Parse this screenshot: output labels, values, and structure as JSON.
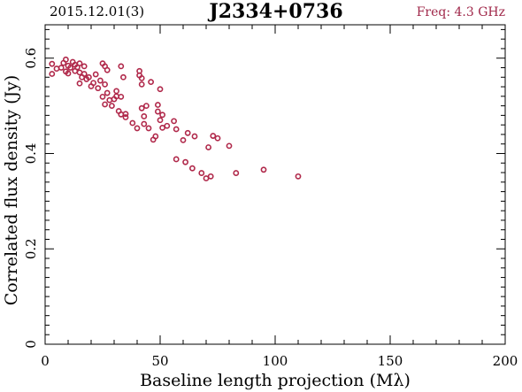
{
  "header": {
    "date_label": "2015.12.01(3)",
    "source_name": "J2334+0736",
    "freq_label": "Freq: 4.3 GHz"
  },
  "colors": {
    "marker": "#b0284a",
    "freq_text": "#a0284a",
    "axis": "#000000"
  },
  "chart_data": {
    "type": "scatter",
    "title": "J2334+0736",
    "xlabel": "Baseline length projection (Mλ)",
    "ylabel": "Correlated flux density (Jy)",
    "xlim": [
      0,
      200
    ],
    "ylim": [
      0,
      0.67
    ],
    "x_ticks": [
      0,
      50,
      100,
      150,
      200
    ],
    "y_ticks": [
      0,
      0.2,
      0.4,
      0.6
    ],
    "x_tick_labels": [
      "0",
      "50",
      "100",
      "150",
      "200"
    ],
    "y_tick_labels": [
      "0",
      "0.2",
      "0.4",
      "0.6"
    ],
    "grid": false,
    "marker": "open-circle",
    "points": [
      [
        3,
        0.588
      ],
      [
        3,
        0.567
      ],
      [
        5,
        0.578
      ],
      [
        7,
        0.58
      ],
      [
        8,
        0.59
      ],
      [
        9,
        0.597
      ],
      [
        9,
        0.572
      ],
      [
        10,
        0.584
      ],
      [
        10,
        0.568
      ],
      [
        11,
        0.58
      ],
      [
        12,
        0.592
      ],
      [
        13,
        0.586
      ],
      [
        13,
        0.573
      ],
      [
        14,
        0.581
      ],
      [
        15,
        0.589
      ],
      [
        15,
        0.57
      ],
      [
        15,
        0.547
      ],
      [
        16,
        0.56
      ],
      [
        17,
        0.583
      ],
      [
        17,
        0.567
      ],
      [
        18,
        0.556
      ],
      [
        19,
        0.56
      ],
      [
        20,
        0.541
      ],
      [
        21,
        0.548
      ],
      [
        22,
        0.566
      ],
      [
        23,
        0.537
      ],
      [
        24,
        0.553
      ],
      [
        25,
        0.589
      ],
      [
        25,
        0.519
      ],
      [
        26,
        0.583
      ],
      [
        26,
        0.545
      ],
      [
        26,
        0.503
      ],
      [
        27,
        0.575
      ],
      [
        27,
        0.527
      ],
      [
        28,
        0.512
      ],
      [
        29,
        0.5
      ],
      [
        30,
        0.514
      ],
      [
        31,
        0.531
      ],
      [
        31,
        0.52
      ],
      [
        32,
        0.489
      ],
      [
        33,
        0.583
      ],
      [
        33,
        0.519
      ],
      [
        33,
        0.482
      ],
      [
        34,
        0.56
      ],
      [
        35,
        0.483
      ],
      [
        35,
        0.476
      ],
      [
        38,
        0.464
      ],
      [
        40,
        0.453
      ],
      [
        41,
        0.573
      ],
      [
        41,
        0.564
      ],
      [
        42,
        0.558
      ],
      [
        42,
        0.545
      ],
      [
        42,
        0.495
      ],
      [
        43,
        0.478
      ],
      [
        43,
        0.462
      ],
      [
        44,
        0.5
      ],
      [
        45,
        0.453
      ],
      [
        46,
        0.55
      ],
      [
        47,
        0.429
      ],
      [
        48,
        0.436
      ],
      [
        49,
        0.502
      ],
      [
        49,
        0.488
      ],
      [
        50,
        0.47
      ],
      [
        50,
        0.535
      ],
      [
        51,
        0.481
      ],
      [
        51,
        0.454
      ],
      [
        53,
        0.458
      ],
      [
        56,
        0.468
      ],
      [
        57,
        0.451
      ],
      [
        57,
        0.388
      ],
      [
        60,
        0.428
      ],
      [
        61,
        0.382
      ],
      [
        62,
        0.443
      ],
      [
        64,
        0.369
      ],
      [
        65,
        0.436
      ],
      [
        68,
        0.359
      ],
      [
        70,
        0.348
      ],
      [
        71,
        0.413
      ],
      [
        72,
        0.352
      ],
      [
        73,
        0.437
      ],
      [
        75,
        0.432
      ],
      [
        80,
        0.416
      ],
      [
        83,
        0.359
      ],
      [
        95,
        0.366
      ],
      [
        110,
        0.352
      ]
    ]
  }
}
